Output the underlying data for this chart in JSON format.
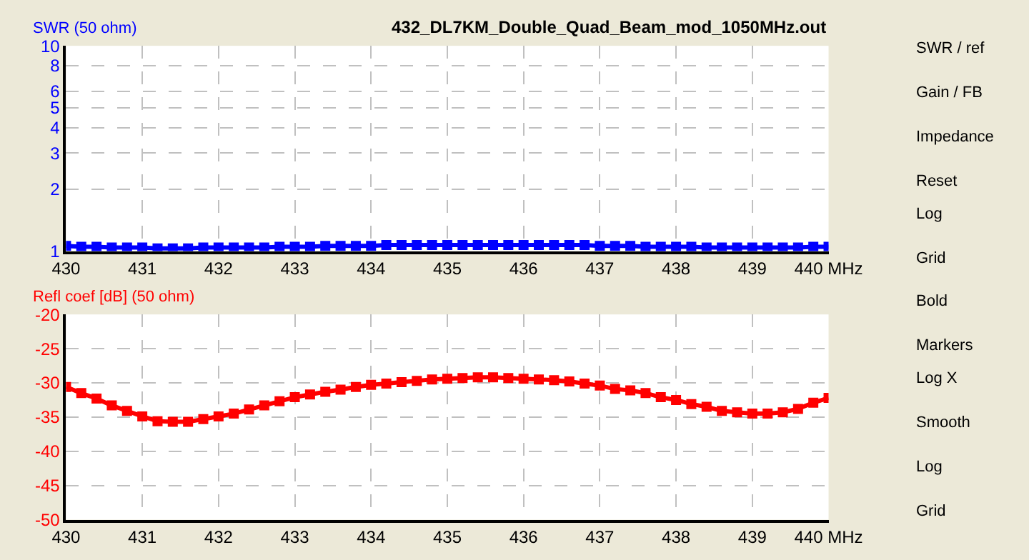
{
  "chart_data": [
    {
      "type": "line",
      "title": "432_DL7KM_Double_Quad_Beam_mod_1050MHz.out",
      "ylabel": "SWR (50 ohm)",
      "log": true,
      "grid": true,
      "marker": "square",
      "line_style": "solid",
      "x": [
        430,
        430.2,
        430.4,
        430.6,
        430.8,
        431,
        431.2,
        431.4,
        431.6,
        431.8,
        432,
        432.2,
        432.4,
        432.6,
        432.8,
        433,
        433.2,
        433.4,
        433.6,
        433.8,
        434,
        434.2,
        434.4,
        434.6,
        434.8,
        435,
        435.2,
        435.4,
        435.6,
        435.8,
        436,
        436.2,
        436.4,
        436.6,
        436.8,
        437,
        437.2,
        437.4,
        437.6,
        437.8,
        438,
        438.2,
        438.4,
        438.6,
        438.8,
        439,
        439.2,
        439.4,
        439.6,
        439.8,
        440
      ],
      "xlim": [
        430,
        440
      ],
      "xticks": [
        430,
        431,
        432,
        433,
        434,
        435,
        436,
        437,
        438,
        439,
        {
          "value": 440,
          "label": "440 MHz"
        }
      ],
      "ylim": [
        1,
        10
      ],
      "yticks": [
        1,
        2,
        3,
        4,
        5,
        6,
        8,
        10
      ],
      "series": [
        {
          "color": "#0000ff",
          "values": [
            1.06,
            1.05,
            1.05,
            1.04,
            1.04,
            1.04,
            1.03,
            1.03,
            1.03,
            1.04,
            1.04,
            1.04,
            1.04,
            1.04,
            1.05,
            1.05,
            1.05,
            1.06,
            1.06,
            1.06,
            1.06,
            1.07,
            1.07,
            1.07,
            1.07,
            1.07,
            1.07,
            1.07,
            1.07,
            1.07,
            1.07,
            1.07,
            1.07,
            1.07,
            1.07,
            1.06,
            1.06,
            1.06,
            1.05,
            1.05,
            1.05,
            1.05,
            1.04,
            1.04,
            1.04,
            1.04,
            1.04,
            1.04,
            1.04,
            1.05,
            1.05
          ]
        }
      ]
    },
    {
      "type": "line",
      "ylabel": "Refl coef [dB] (50 ohm)",
      "grid": true,
      "marker": "square",
      "line_style": "solid",
      "x": [
        430,
        430.2,
        430.4,
        430.6,
        430.8,
        431,
        431.2,
        431.4,
        431.6,
        431.8,
        432,
        432.2,
        432.4,
        432.6,
        432.8,
        433,
        433.2,
        433.4,
        433.6,
        433.8,
        434,
        434.2,
        434.4,
        434.6,
        434.8,
        435,
        435.2,
        435.4,
        435.6,
        435.8,
        436,
        436.2,
        436.4,
        436.6,
        436.8,
        437,
        437.2,
        437.4,
        437.6,
        437.8,
        438,
        438.2,
        438.4,
        438.6,
        438.8,
        439,
        439.2,
        439.4,
        439.6,
        439.8,
        440
      ],
      "xlim": [
        430,
        440
      ],
      "xticks": [
        430,
        431,
        432,
        433,
        434,
        435,
        436,
        437,
        438,
        439,
        {
          "value": 440,
          "label": "440 MHz"
        }
      ],
      "ylim": [
        -50,
        -20
      ],
      "yticks": [
        -50,
        -45,
        -40,
        -35,
        -30,
        -25,
        -20
      ],
      "series": [
        {
          "color": "#ff0000",
          "values": [
            -30.6,
            -31.5,
            -32.3,
            -33.3,
            -34.1,
            -34.9,
            -35.6,
            -35.7,
            -35.7,
            -35.3,
            -34.9,
            -34.5,
            -33.9,
            -33.3,
            -32.7,
            -32.1,
            -31.7,
            -31.3,
            -31.0,
            -30.6,
            -30.3,
            -30.1,
            -29.9,
            -29.7,
            -29.5,
            -29.4,
            -29.3,
            -29.2,
            -29.2,
            -29.3,
            -29.4,
            -29.5,
            -29.6,
            -29.8,
            -30.1,
            -30.4,
            -30.9,
            -31.1,
            -31.5,
            -32.1,
            -32.5,
            -33.1,
            -33.5,
            -34.1,
            -34.3,
            -34.5,
            -34.5,
            -34.3,
            -33.8,
            -32.9,
            -32.2
          ]
        }
      ]
    },
    {
      "type": "other",
      "annotations": [
        "SWR / ref",
        "Gain / FB",
        "Impedance",
        "Reset",
        "Log",
        "Grid",
        "Bold",
        "Markers",
        "Log X",
        "Smooth",
        "Log",
        "Grid"
      ]
    }
  ]
}
